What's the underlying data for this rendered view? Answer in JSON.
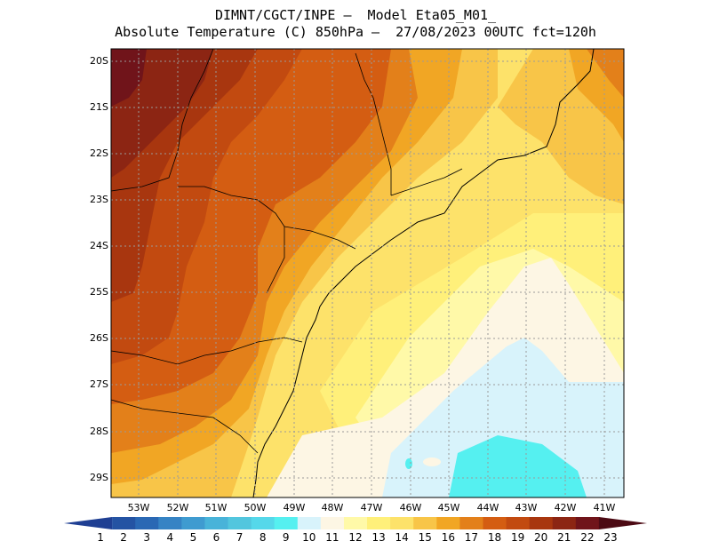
{
  "title_line1": "DIMNT/CGCT/INPE –  Model Eta05_M01_",
  "title_line2": "Absolute Temperature (C) 850hPa –  27/08/2023 00UTC fct=120h",
  "lat_labels": [
    "20S",
    "21S",
    "22S",
    "23S",
    "24S",
    "25S",
    "26S",
    "27S",
    "28S",
    "29S"
  ],
  "lon_labels": [
    "53W",
    "52W",
    "51W",
    "50W",
    "49W",
    "48W",
    "47W",
    "46W",
    "45W",
    "44W",
    "43W",
    "42W",
    "41W"
  ],
  "colorbar": {
    "labels": [
      "1",
      "2",
      "3",
      "4",
      "5",
      "6",
      "7",
      "8",
      "9",
      "10",
      "11",
      "12",
      "13",
      "14",
      "15",
      "16",
      "17",
      "18",
      "19",
      "20",
      "21",
      "22",
      "23"
    ],
    "colors": [
      "#1f3f93",
      "#2453a3",
      "#2a68b4",
      "#3683c4",
      "#3f9bd0",
      "#48b3d9",
      "#52c6de",
      "#55d8ea",
      "#55f0f0",
      "#d8f3fb",
      "#fdf6e4",
      "#fff9a8",
      "#fff07a",
      "#fde26a",
      "#f8c548",
      "#f1a624",
      "#e3801a",
      "#d45d12",
      "#c24a10",
      "#a8360f",
      "#8c2513",
      "#70141a",
      "#4c0a14"
    ]
  },
  "chart_data": {
    "type": "heatmap",
    "title": "Absolute Temperature (C) 850hPa",
    "model": "Eta05_M01_",
    "valid": "27/08/2023 00UTC fct=120h",
    "units": "C",
    "lat_range": [
      -29.5,
      -19.5
    ],
    "lon_range": [
      -53.5,
      -40.5
    ],
    "color_levels": [
      1,
      2,
      3,
      4,
      5,
      6,
      7,
      8,
      9,
      10,
      11,
      12,
      13,
      14,
      15,
      16,
      17,
      18,
      19,
      20,
      21,
      22,
      23
    ]
  }
}
